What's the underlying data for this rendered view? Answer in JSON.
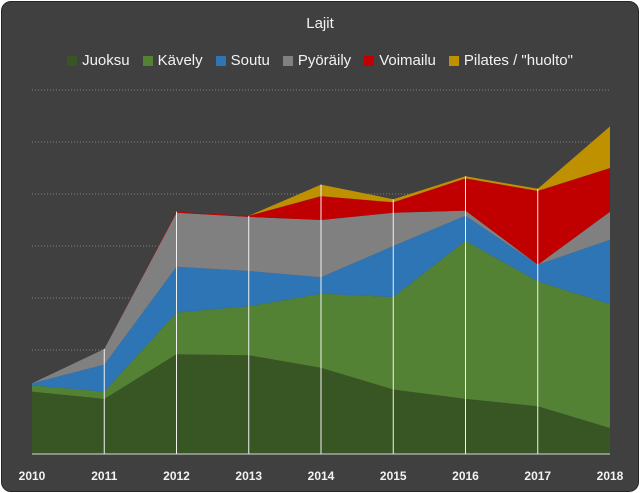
{
  "chart_data": {
    "type": "area",
    "stacked": true,
    "title": "Lajit",
    "xlabel": "",
    "ylabel": "",
    "x": [
      "2010",
      "2011",
      "2012",
      "2013",
      "2014",
      "2015",
      "2016",
      "2017",
      "2018"
    ],
    "ylim": [
      0,
      350
    ],
    "y_tick_labels_shown": false,
    "grid": "horizontal dotted",
    "legend_position": "top",
    "series": [
      {
        "name": "Juoksu",
        "color": "#375623",
        "values": [
          60,
          53,
          96,
          95,
          83,
          62,
          53,
          46,
          25
        ]
      },
      {
        "name": "Kävely",
        "color": "#548235",
        "values": [
          6,
          7,
          40,
          47,
          71,
          89,
          152,
          120,
          119
        ]
      },
      {
        "name": "Soutu",
        "color": "#2e75b6",
        "values": [
          2,
          26,
          44,
          34,
          16,
          49,
          24,
          16,
          62
        ]
      },
      {
        "name": "Pyöräily",
        "color": "#808080",
        "values": [
          0,
          15,
          52,
          52,
          55,
          32,
          5,
          0,
          27
        ]
      },
      {
        "name": "Voimailu",
        "color": "#c00000",
        "values": [
          0,
          0,
          1,
          1,
          23,
          10,
          31,
          71,
          42
        ]
      },
      {
        "name": "Pilates / \"huolto\"",
        "color": "#bf9000",
        "values": [
          0,
          0,
          0,
          0,
          11,
          3,
          2,
          2,
          40
        ]
      }
    ]
  }
}
